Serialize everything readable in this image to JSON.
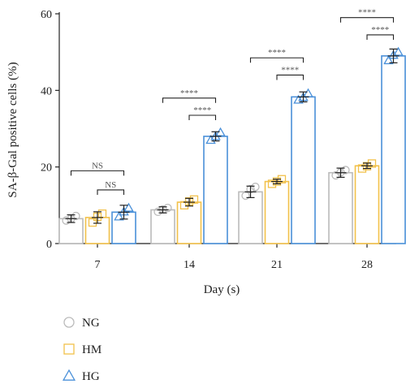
{
  "chart_data": {
    "type": "bar",
    "xlabel": "Day (s)",
    "ylabel": "SA-β-Gal positive cells (%)",
    "ylim": [
      0,
      60
    ],
    "yticks": [
      0,
      20,
      40,
      60
    ],
    "categories": [
      "7",
      "14",
      "21",
      "28"
    ],
    "series": [
      {
        "name": "NG",
        "color": "#bbbbbb",
        "marker": "circle",
        "values": [
          6.5,
          8.8,
          13.5,
          18.5
        ],
        "errors": [
          1.0,
          0.8,
          1.5,
          1.2
        ],
        "points": [
          [
            6.0,
            6.5,
            7.2
          ],
          [
            8.3,
            8.9,
            9.3
          ],
          [
            12.5,
            14.2,
            14.8
          ],
          [
            17.8,
            18.6,
            19.2
          ]
        ]
      },
      {
        "name": "HM",
        "color": "#f2c14a",
        "marker": "square",
        "values": [
          6.8,
          10.8,
          16.2,
          20.3
        ],
        "errors": [
          1.5,
          1.0,
          0.6,
          0.7
        ],
        "points": [
          [
            5.5,
            7.0,
            7.8
          ],
          [
            10.0,
            11.0,
            11.5
          ],
          [
            15.6,
            16.2,
            16.8
          ],
          [
            19.6,
            20.2,
            20.9
          ]
        ]
      },
      {
        "name": "HG",
        "color": "#4a90d9",
        "marker": "triangle",
        "values": [
          8.2,
          28.0,
          38.3,
          49.0
        ],
        "errors": [
          1.8,
          1.2,
          1.3,
          1.8
        ],
        "points": [
          [
            7.0,
            8.3,
            9.3
          ],
          [
            27.0,
            28.0,
            29.0
          ],
          [
            37.5,
            38.2,
            39.2
          ],
          [
            47.8,
            49.2,
            50.0
          ]
        ]
      }
    ],
    "annotations": [
      {
        "category": "7",
        "from": "NG",
        "to": "HG",
        "label": "NS",
        "y": 19
      },
      {
        "category": "7",
        "from": "HM",
        "to": "HG",
        "label": "NS",
        "y": 14
      },
      {
        "category": "14",
        "from": "NG",
        "to": "HG",
        "label": "****",
        "y": 38
      },
      {
        "category": "14",
        "from": "HM",
        "to": "HG",
        "label": "****",
        "y": 33.5
      },
      {
        "category": "21",
        "from": "NG",
        "to": "HG",
        "label": "****",
        "y": 48.5
      },
      {
        "category": "21",
        "from": "HM",
        "to": "HG",
        "label": "****",
        "y": 44
      },
      {
        "category": "28",
        "from": "NG",
        "to": "HG",
        "label": "****",
        "y": 59
      },
      {
        "category": "28",
        "from": "HM",
        "to": "HG",
        "label": "****",
        "y": 54.5
      }
    ],
    "legend_position": "bottom-left"
  }
}
